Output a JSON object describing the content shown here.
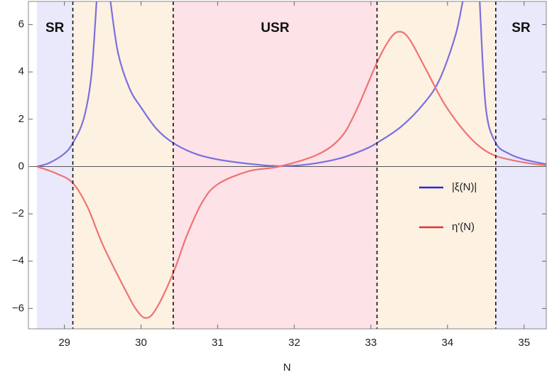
{
  "chart_data": {
    "type": "line",
    "xlabel": "N",
    "xlim": [
      28.53,
      35.29
    ],
    "ylim": [
      -6.86,
      6.98
    ],
    "xticks": [
      29,
      30,
      31,
      32,
      33,
      34,
      35
    ],
    "yticks": [
      {
        "value": -6,
        "label": "−6"
      },
      {
        "value": -4,
        "label": "−4"
      },
      {
        "value": -2,
        "label": "−2"
      },
      0,
      2,
      4,
      6
    ],
    "legend": "right",
    "regions": [
      {
        "label": "SR",
        "from": 28.64,
        "to": 29.11,
        "color": "#e9e9fb"
      },
      {
        "from": 29.11,
        "to": 30.42,
        "color": "#fdf1e2"
      },
      {
        "label": "USR",
        "from": 30.42,
        "to": 33.08,
        "color": "#fde2e7"
      },
      {
        "from": 33.08,
        "to": 34.63,
        "color": "#fdf1e2"
      },
      {
        "label": "SR",
        "from": 34.63,
        "to": 35.29,
        "color": "#e9e9fb"
      }
    ],
    "series": [
      {
        "name": "|ξ(N)|",
        "color": "#7a70dd",
        "legend_color": "#2b2bd6",
        "x": [
          28.64,
          28.8,
          29.0,
          29.11,
          29.25,
          29.35,
          29.42,
          29.5,
          29.6,
          29.7,
          29.85,
          30.0,
          30.2,
          30.42,
          30.7,
          31.0,
          31.4,
          31.8,
          32.2,
          32.6,
          32.9,
          33.08,
          33.4,
          33.7,
          33.9,
          34.1,
          34.2,
          34.3,
          34.42,
          34.5,
          34.63,
          34.8,
          35.0,
          35.29
        ],
        "values": [
          0,
          0.15,
          0.55,
          1,
          2,
          3.8,
          7,
          null,
          7,
          4.8,
          3.3,
          2.5,
          1.6,
          1,
          0.55,
          0.3,
          0.12,
          0.02,
          0.1,
          0.35,
          0.7,
          1,
          1.7,
          2.7,
          3.7,
          5.5,
          7,
          null,
          7,
          2.5,
          1,
          0.55,
          0.3,
          0.1
        ]
      },
      {
        "name": "η'(N)",
        "color": "#f07272",
        "legend_color": "#e63333",
        "x": [
          28.64,
          28.9,
          29.11,
          29.3,
          29.5,
          29.8,
          29.95,
          30.07,
          30.2,
          30.42,
          30.6,
          30.8,
          31.0,
          31.4,
          31.8,
          32.3,
          32.6,
          32.8,
          33.08,
          33.25,
          33.37,
          33.5,
          33.72,
          33.95,
          34.18,
          34.4,
          34.63,
          35.0,
          35.29
        ],
        "values": [
          0,
          -0.3,
          -0.7,
          -1.7,
          -3.3,
          -5.25,
          -6.1,
          -6.4,
          -6.0,
          -4.5,
          -2.9,
          -1.5,
          -0.75,
          -0.2,
          0,
          0.5,
          1.2,
          2.3,
          4.4,
          5.4,
          5.7,
          5.4,
          4.1,
          2.7,
          1.65,
          0.9,
          0.45,
          0.17,
          0.05
        ]
      }
    ]
  }
}
